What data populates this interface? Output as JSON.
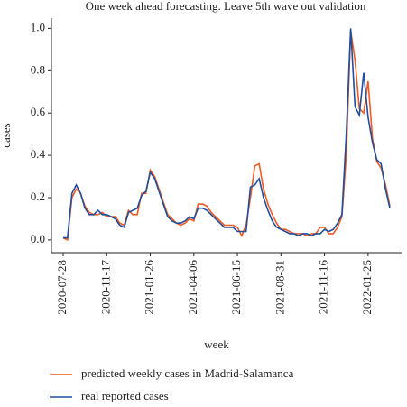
{
  "chart_data": {
    "type": "line",
    "title": "One week ahead forecasting. Leave 5th wave out validation",
    "x_label": "week",
    "y_label": "cases",
    "categories": [
      "2020-07-28",
      null,
      null,
      null,
      null,
      null,
      null,
      null,
      null,
      null,
      "2020-11-17",
      null,
      null,
      null,
      null,
      null,
      null,
      null,
      null,
      null,
      "2021-01-26",
      null,
      null,
      null,
      null,
      null,
      null,
      null,
      null,
      null,
      "2021-04-06",
      null,
      null,
      null,
      null,
      null,
      null,
      null,
      null,
      null,
      "2021-06-15",
      null,
      null,
      null,
      null,
      null,
      null,
      null,
      null,
      null,
      "2021-08-31",
      null,
      null,
      null,
      null,
      null,
      null,
      null,
      null,
      null,
      "2021-11-16",
      null,
      null,
      null,
      null,
      null,
      null,
      null,
      null,
      null,
      "2022-01-25",
      null,
      null,
      null,
      null,
      null
    ],
    "series": [
      {
        "name": "predicted weekly cases in Madrid-Salamanca",
        "color": "#f15a22",
        "values": [
          0.01,
          0.0,
          0.2,
          0.24,
          0.22,
          0.16,
          0.13,
          0.12,
          0.12,
          0.13,
          0.11,
          0.11,
          0.11,
          0.08,
          0.07,
          0.14,
          0.12,
          0.12,
          0.22,
          0.22,
          0.33,
          0.3,
          0.24,
          0.18,
          0.12,
          0.1,
          0.08,
          0.07,
          0.08,
          0.1,
          0.09,
          0.17,
          0.17,
          0.16,
          0.13,
          0.11,
          0.09,
          0.07,
          0.07,
          0.07,
          0.06,
          0.02,
          0.07,
          0.2,
          0.35,
          0.36,
          0.24,
          0.17,
          0.12,
          0.08,
          0.05,
          0.05,
          0.04,
          0.03,
          0.03,
          0.03,
          0.02,
          0.03,
          0.03,
          0.06,
          0.06,
          0.03,
          0.03,
          0.06,
          0.11,
          0.4,
          0.99,
          0.85,
          0.62,
          0.6,
          0.75,
          0.48,
          0.37,
          0.34,
          0.26,
          0.16
        ]
      },
      {
        "name": "real reported cases",
        "color": "#1f4e9c",
        "values": [
          0.01,
          0.01,
          0.22,
          0.26,
          0.22,
          0.15,
          0.12,
          0.12,
          0.14,
          0.12,
          0.12,
          0.11,
          0.1,
          0.07,
          0.06,
          0.13,
          0.14,
          0.15,
          0.21,
          0.23,
          0.32,
          0.29,
          0.23,
          0.17,
          0.11,
          0.09,
          0.08,
          0.08,
          0.09,
          0.11,
          0.1,
          0.15,
          0.15,
          0.14,
          0.12,
          0.1,
          0.08,
          0.06,
          0.06,
          0.06,
          0.04,
          0.04,
          0.04,
          0.25,
          0.26,
          0.29,
          0.2,
          0.14,
          0.09,
          0.06,
          0.05,
          0.04,
          0.03,
          0.03,
          0.02,
          0.03,
          0.03,
          0.02,
          0.03,
          0.03,
          0.05,
          0.04,
          0.05,
          0.08,
          0.12,
          0.5,
          1.0,
          0.63,
          0.59,
          0.79,
          0.58,
          0.46,
          0.38,
          0.36,
          0.24,
          0.15
        ]
      }
    ],
    "ylim": [
      -0.06,
      1.04
    ],
    "yticks": [
      {
        "value": 0,
        "label": "0.0"
      },
      {
        "value": 0.2,
        "label": "0.2"
      },
      {
        "value": 0.4,
        "label": "0.4"
      },
      {
        "value": 0.6,
        "label": "0.6"
      },
      {
        "value": 0.8,
        "label": "0.8"
      },
      {
        "value": 1,
        "label": "1.0"
      }
    ],
    "grid": false
  }
}
